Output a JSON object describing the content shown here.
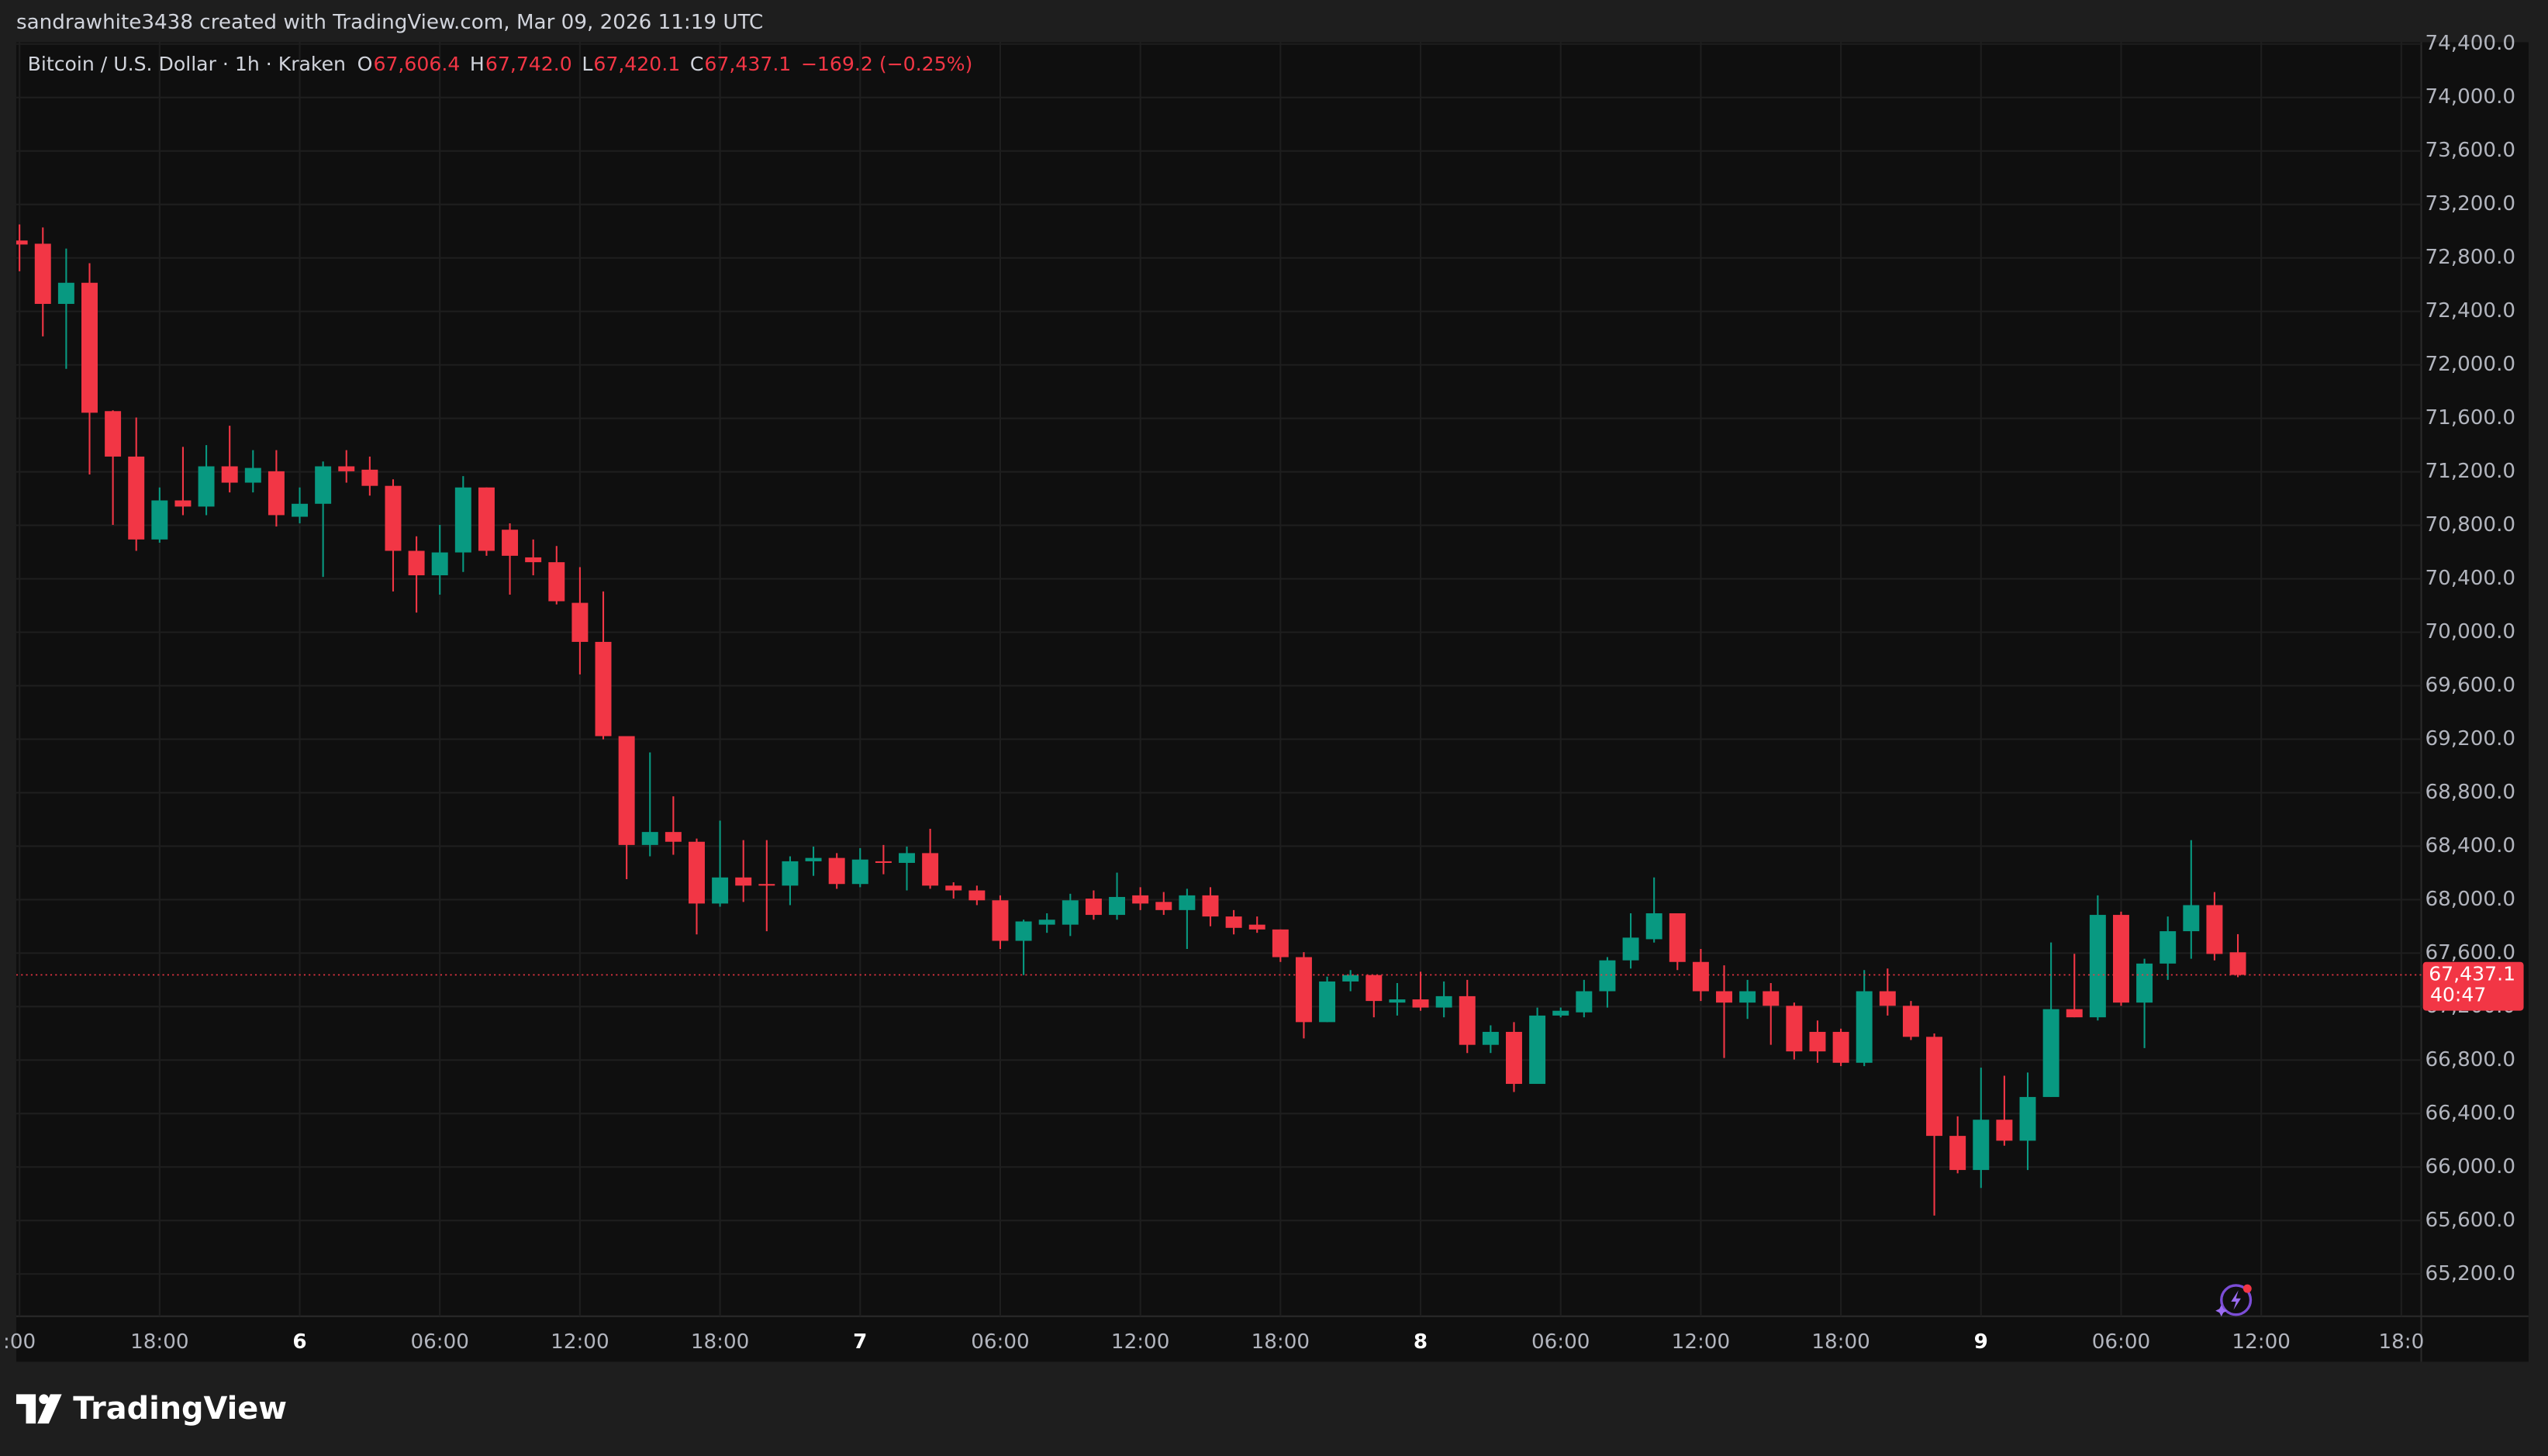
{
  "header": "sandrawhite3438 created with TradingView.com, Mar 09, 2026 11:19 UTC",
  "footer": {
    "brand": "TradingView"
  },
  "chart_data": {
    "type": "candlestick",
    "legend": {
      "symbol": "Bitcoin / U.S. Dollar · 1h · Kraken",
      "items": [
        {
          "key": "O",
          "value": "67,606.4"
        },
        {
          "key": "H",
          "value": "67,742.0"
        },
        {
          "key": "L",
          "value": "67,420.1"
        },
        {
          "key": "C",
          "value": "67,437.1"
        }
      ],
      "change": "−169.2 (−0.25%)"
    },
    "up_color": "#089981",
    "down_color": "#f23645",
    "open": [
      72930,
      72906,
      72456,
      72614,
      71654,
      71314,
      70694,
      70986,
      70940,
      71241,
      71119,
      71204,
      70864,
      70961,
      71241,
      71216,
      71095,
      70609,
      70426,
      70597,
      71083,
      70767,
      70560,
      70524,
      70220,
      69928,
      69223,
      68409,
      68506,
      68433,
      67971,
      68166,
      68117,
      68105,
      68287,
      68312,
      68117,
      68287,
      68275,
      68348,
      68105,
      68069,
      67995,
      67692,
      67813,
      67813,
      68008,
      67886,
      68032,
      67983,
      67922,
      68032,
      67874,
      67813,
      67777,
      67570,
      67084,
      67388,
      67436,
      67230,
      67254,
      67193,
      67278,
      66914,
      67011,
      66622,
      67133,
      67157,
      67315,
      67546,
      67704,
      67898,
      67534,
      67315,
      67230,
      67315,
      67206,
      67011,
      67011,
      66780,
      67315,
      67206,
      66974,
      66233,
      65978,
      66354,
      66197,
      66524,
      67181,
      67120,
      67886,
      67230,
      67522,
      67764,
      67959,
      67606.4
    ],
    "high": [
      73050,
      73028,
      72870,
      72760,
      71660,
      71606,
      71083,
      71387,
      71400,
      71545,
      71362,
      71362,
      71083,
      71277,
      71362,
      71314,
      71144,
      70718,
      70803,
      71168,
      71083,
      70815,
      70694,
      70645,
      70487,
      70305,
      69223,
      69101,
      68773,
      68457,
      68591,
      68445,
      68445,
      68324,
      68397,
      68348,
      68385,
      68409,
      68397,
      68530,
      68130,
      68105,
      68032,
      67850,
      67898,
      68044,
      68069,
      68202,
      68093,
      68057,
      68081,
      68093,
      67922,
      67874,
      67777,
      67607,
      67424,
      67473,
      67436,
      67376,
      67461,
      67388,
      67400,
      67060,
      67084,
      67193,
      67193,
      67400,
      67570,
      67898,
      68166,
      67898,
      67631,
      67509,
      67400,
      67376,
      67230,
      67096,
      67035,
      67473,
      67485,
      67242,
      66999,
      66379,
      66743,
      66683,
      66707,
      67680,
      67595,
      68032,
      67910,
      67558,
      67874,
      68445,
      68057,
      67742.0
    ],
    "low": [
      72700,
      72213,
      71970,
      71180,
      70803,
      70609,
      70670,
      70876,
      70876,
      71046,
      71046,
      70791,
      70815,
      70414,
      71119,
      71022,
      70305,
      70147,
      70281,
      70451,
      70572,
      70281,
      70426,
      70208,
      69685,
      69199,
      68153,
      68324,
      68336,
      67740,
      67947,
      67983,
      67764,
      67959,
      68178,
      68081,
      68093,
      68190,
      68069,
      68081,
      68008,
      67959,
      67631,
      67436,
      67752,
      67728,
      67850,
      67850,
      67922,
      67886,
      67631,
      67801,
      67740,
      67752,
      67534,
      66962,
      67084,
      67315,
      67120,
      67133,
      67169,
      67120,
      66853,
      66853,
      66561,
      66622,
      67120,
      67120,
      67193,
      67485,
      67679,
      67473,
      67242,
      66816,
      67108,
      66914,
      66804,
      66780,
      66755,
      66755,
      67133,
      66950,
      65637,
      65953,
      65844,
      66160,
      65978,
      66524,
      67120,
      67096,
      67206,
      66890,
      67400,
      67558,
      67546,
      67420.1
    ],
    "close": [
      72900,
      72456,
      72614,
      71642,
      71314,
      70694,
      70986,
      70940,
      71241,
      71119,
      71229,
      70876,
      70961,
      71241,
      71204,
      71095,
      70609,
      70426,
      70597,
      71083,
      70609,
      70572,
      70524,
      70232,
      69928,
      69223,
      68409,
      68506,
      68433,
      67971,
      68166,
      68105,
      68105,
      68287,
      68312,
      68117,
      68300,
      68275,
      68348,
      68105,
      68069,
      67995,
      67692,
      67837,
      67850,
      67995,
      67886,
      68020,
      67971,
      67922,
      68032,
      67874,
      67789,
      67777,
      67570,
      67084,
      67388,
      67436,
      67242,
      67254,
      67193,
      67278,
      66914,
      67011,
      66622,
      67133,
      67169,
      67315,
      67546,
      67716,
      67898,
      67534,
      67315,
      67230,
      67315,
      67206,
      66865,
      66865,
      66780,
      67315,
      67206,
      66974,
      66233,
      65978,
      66354,
      66197,
      66524,
      67181,
      67120,
      67886,
      67230,
      67522,
      67764,
      67959,
      67594,
      67437.1
    ],
    "ylim": [
      64884,
      74413
    ],
    "yticks": [
      {
        "value": 65200,
        "label": "65,200.0"
      },
      {
        "value": 65600,
        "label": "65,600.0"
      },
      {
        "value": 66000,
        "label": "66,000.0"
      },
      {
        "value": 66400,
        "label": "66,400.0"
      },
      {
        "value": 66800,
        "label": "66,800.0"
      },
      {
        "value": 67200,
        "label": "67,200.0"
      },
      {
        "value": 67600,
        "label": "67,600.0"
      },
      {
        "value": 68000,
        "label": "68,000.0"
      },
      {
        "value": 68400,
        "label": "68,400.0"
      },
      {
        "value": 68800,
        "label": "68,800.0"
      },
      {
        "value": 69200,
        "label": "69,200.0"
      },
      {
        "value": 69600,
        "label": "69,600.0"
      },
      {
        "value": 70000,
        "label": "70,000.0"
      },
      {
        "value": 70400,
        "label": "70,400.0"
      },
      {
        "value": 70800,
        "label": "70,800.0"
      },
      {
        "value": 71200,
        "label": "71,200.0"
      },
      {
        "value": 71600,
        "label": "71,600.0"
      },
      {
        "value": 72000,
        "label": "72,000.0"
      },
      {
        "value": 72400,
        "label": "72,400.0"
      },
      {
        "value": 72800,
        "label": "72,800.0"
      },
      {
        "value": 73200,
        "label": "73,200.0"
      },
      {
        "value": 73600,
        "label": "73,600.0"
      },
      {
        "value": 74000,
        "label": "74,000.0"
      },
      {
        "value": 74400,
        "label": "74,400.0"
      }
    ],
    "xticks": [
      {
        "value": 0,
        "label": ":00"
      },
      {
        "value": 6,
        "label": "18:00"
      },
      {
        "value": 12,
        "label": "6"
      },
      {
        "value": 18,
        "label": "06:00"
      },
      {
        "value": 24,
        "label": "12:00"
      },
      {
        "value": 30,
        "label": "18:00"
      },
      {
        "value": 36,
        "label": "7"
      },
      {
        "value": 42,
        "label": "06:00"
      },
      {
        "value": 48,
        "label": "12:00"
      },
      {
        "value": 54,
        "label": "18:00"
      },
      {
        "value": 60,
        "label": "8"
      },
      {
        "value": 66,
        "label": "06:00"
      },
      {
        "value": 72,
        "label": "12:00"
      },
      {
        "value": 78,
        "label": "18:00"
      },
      {
        "value": 84,
        "label": "9"
      },
      {
        "value": 90,
        "label": "06:00"
      },
      {
        "value": 96,
        "label": "12:00"
      },
      {
        "value": 102,
        "label": "18:0"
      }
    ],
    "grid": true,
    "price_line": {
      "value": 67437.1,
      "label": "67,437.1"
    },
    "countdown": "40:47"
  }
}
